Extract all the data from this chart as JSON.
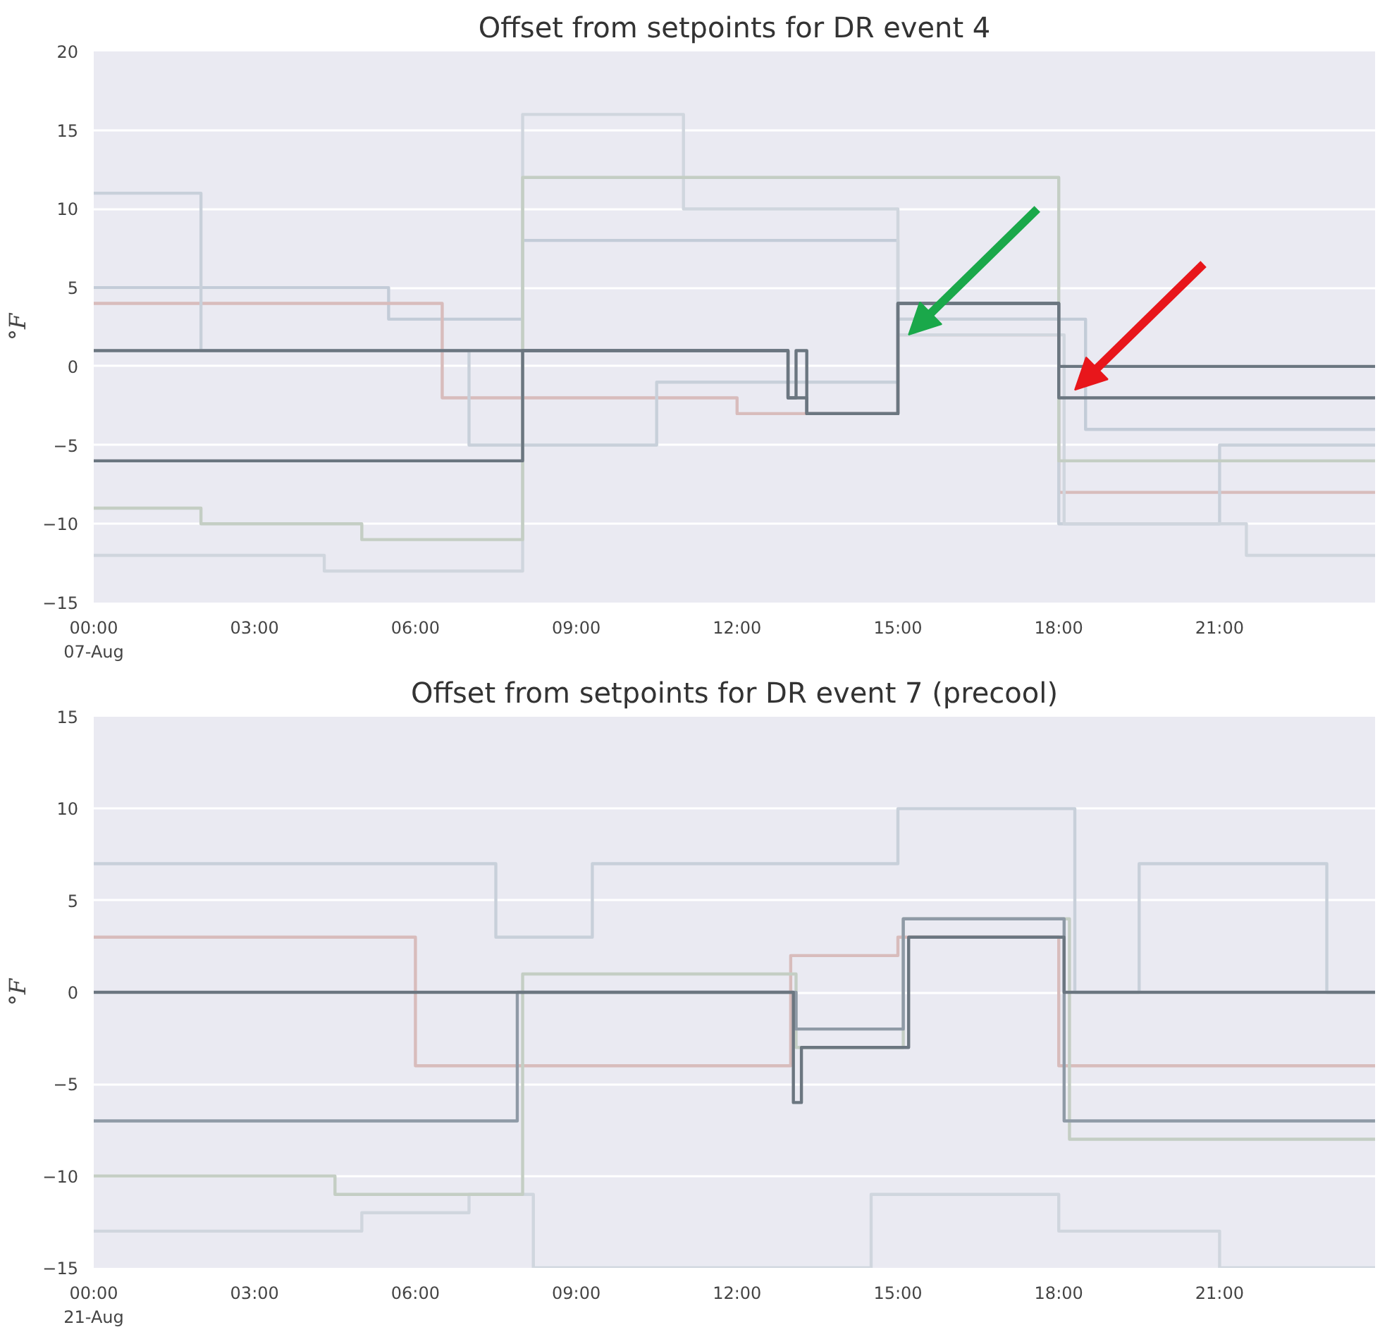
{
  "chart_data": [
    {
      "type": "step",
      "title": "Offset from setpoints for DR event 4",
      "ylabel": "°F",
      "xlim": [
        0,
        23.9
      ],
      "ylim": [
        -15,
        20
      ],
      "xticks": [
        {
          "value": 0,
          "label": "00:00\n07-Aug"
        },
        {
          "value": 3,
          "label": "03:00"
        },
        {
          "value": 6,
          "label": "06:00"
        },
        {
          "value": 9,
          "label": "09:00"
        },
        {
          "value": 12,
          "label": "12:00"
        },
        {
          "value": 15,
          "label": "15:00"
        },
        {
          "value": 18,
          "label": "18:00"
        },
        {
          "value": 21,
          "label": "21:00"
        }
      ],
      "yticks": [
        -15,
        -10,
        -5,
        0,
        5,
        10,
        15,
        20
      ],
      "grid": "y",
      "series": [
        {
          "color": "#c3ccd8",
          "x": [
            0,
            5.5,
            8.0,
            15.0,
            18.5,
            23.9
          ],
          "values": [
            5,
            3,
            8,
            3,
            -4,
            -4
          ]
        },
        {
          "color": "#d8bcbc",
          "x": [
            0,
            6.5,
            12.0,
            15.0,
            18.0,
            23.9
          ],
          "values": [
            4,
            -2,
            -3,
            2,
            -8,
            -8
          ]
        },
        {
          "color": "#c8d0da",
          "x": [
            0,
            2.0,
            7.0,
            10.5,
            15.0,
            18.0,
            21.0,
            23.9
          ],
          "values": [
            11,
            1,
            -5,
            -1,
            3,
            -10,
            -5,
            -5
          ]
        },
        {
          "color": "#d0d6de",
          "x": [
            0,
            4.3,
            8.0,
            11.0,
            15.0,
            18.1,
            21.5,
            23.9
          ],
          "values": [
            -12,
            -13,
            16,
            10,
            2,
            -10,
            -12,
            -12
          ]
        },
        {
          "color": "#c4cec4",
          "x": [
            0,
            2.0,
            5.0,
            8.0,
            18.0,
            23.9
          ],
          "values": [
            -9,
            -10,
            -11,
            12,
            -6,
            -6
          ]
        },
        {
          "color": "#6b7680",
          "x": [
            0,
            8.0,
            12.95,
            13.3,
            15.0,
            18.0,
            23.9
          ],
          "values": [
            -6,
            1,
            -2,
            -3,
            4,
            0,
            0
          ]
        },
        {
          "color": "#6b7680",
          "x": [
            0,
            12.95,
            13.1,
            13.3,
            15.0,
            18.0,
            23.9
          ],
          "values": [
            1,
            -2,
            1,
            -3,
            4,
            -2,
            -2
          ]
        }
      ]
    },
    {
      "type": "step",
      "title": "Offset from setpoints for DR event 7 (precool)",
      "ylabel": "°F",
      "xlim": [
        0,
        23.9
      ],
      "ylim": [
        -15,
        15
      ],
      "xticks": [
        {
          "value": 0,
          "label": "00:00\n21-Aug"
        },
        {
          "value": 3,
          "label": "03:00"
        },
        {
          "value": 6,
          "label": "06:00"
        },
        {
          "value": 9,
          "label": "09:00"
        },
        {
          "value": 12,
          "label": "12:00"
        },
        {
          "value": 15,
          "label": "15:00"
        },
        {
          "value": 18,
          "label": "18:00"
        },
        {
          "value": 21,
          "label": "21:00"
        }
      ],
      "yticks": [
        -15,
        -10,
        -5,
        0,
        5,
        10,
        15
      ],
      "grid": "y",
      "series": [
        {
          "color": "#c8d0da",
          "x": [
            0,
            7.5,
            9.3,
            15.0,
            18.3,
            19.5,
            23.0,
            23.9
          ],
          "values": [
            7,
            3,
            7,
            10,
            0,
            7,
            0,
            0
          ]
        },
        {
          "color": "#d8bcbc",
          "x": [
            0,
            6.0,
            13.0,
            15.0,
            18.0,
            23.9
          ],
          "values": [
            3,
            -4,
            2,
            3,
            -4,
            -4
          ]
        },
        {
          "color": "#d0d6de",
          "x": [
            0,
            5.0,
            7.0,
            8.2,
            14.5,
            18.0,
            21.0,
            23.9
          ],
          "values": [
            -13,
            -12,
            -11,
            -15,
            -11,
            -13,
            -15,
            -15
          ]
        },
        {
          "color": "#c4cec4",
          "x": [
            0,
            4.5,
            8.0,
            13.1,
            15.1,
            18.2,
            23.9
          ],
          "values": [
            -10,
            -11,
            1,
            -3,
            4,
            -8,
            -8
          ]
        },
        {
          "color": "#8f9aa6",
          "x": [
            0,
            7.9,
            13.1,
            15.1,
            18.1,
            23.9
          ],
          "values": [
            -7,
            0,
            -2,
            4,
            -7,
            -7
          ]
        },
        {
          "color": "#6b7680",
          "x": [
            0,
            13.05,
            13.2,
            15.0,
            15.2,
            18.1,
            23.9
          ],
          "values": [
            0,
            -6,
            -3,
            -3,
            3,
            0,
            0
          ]
        }
      ]
    }
  ]
}
